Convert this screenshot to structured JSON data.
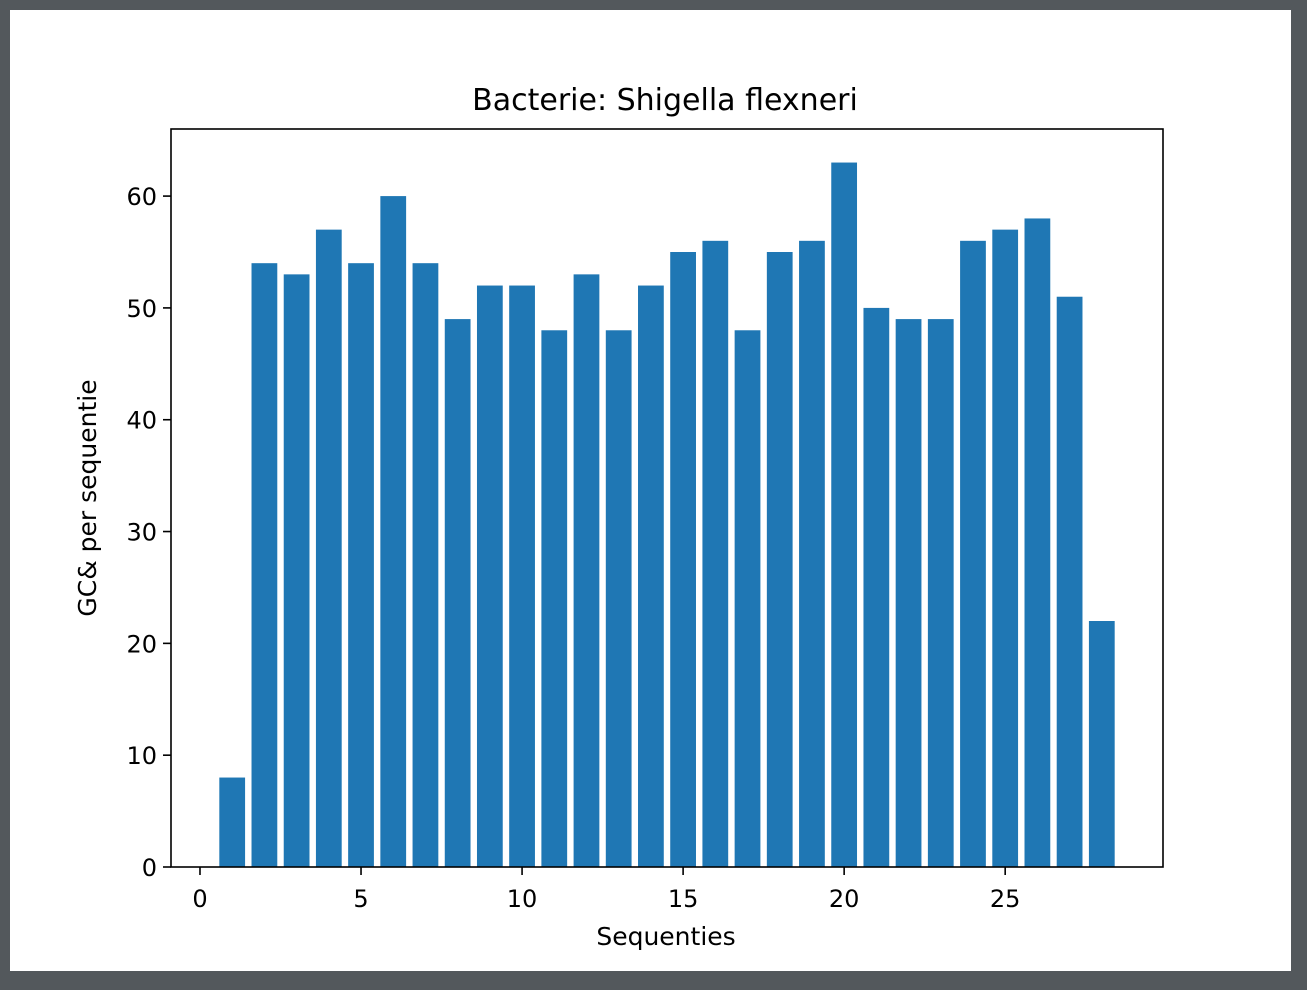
{
  "chart_data": {
    "type": "bar",
    "title": "Bacterie: Shigella flexneri",
    "xlabel": "Sequenties",
    "ylabel": "GC& per sequentie",
    "x": [
      1,
      2,
      3,
      4,
      5,
      6,
      7,
      8,
      9,
      10,
      11,
      12,
      13,
      14,
      15,
      16,
      17,
      18,
      19,
      20,
      21,
      22,
      23,
      24,
      25,
      26,
      27,
      28
    ],
    "values": [
      8,
      54,
      53,
      57,
      54,
      60,
      54,
      49,
      52,
      52,
      48,
      53,
      48,
      52,
      55,
      56,
      48,
      55,
      56,
      63,
      50,
      49,
      49,
      56,
      57,
      58,
      51,
      22
    ],
    "xlim": [
      -0.9,
      29.9
    ],
    "ylim": [
      0,
      66
    ],
    "xticks": [
      0,
      5,
      10,
      15,
      20,
      25
    ],
    "xtick_labels": [
      "0",
      "5",
      "10",
      "15",
      "20",
      "25"
    ],
    "yticks": [
      0,
      10,
      20,
      30,
      40,
      50,
      60
    ],
    "ytick_labels": [
      "0",
      "10",
      "20",
      "30",
      "40",
      "50",
      "60"
    ],
    "bar_color": "#1f77b4",
    "grid": false,
    "legend": "none"
  }
}
